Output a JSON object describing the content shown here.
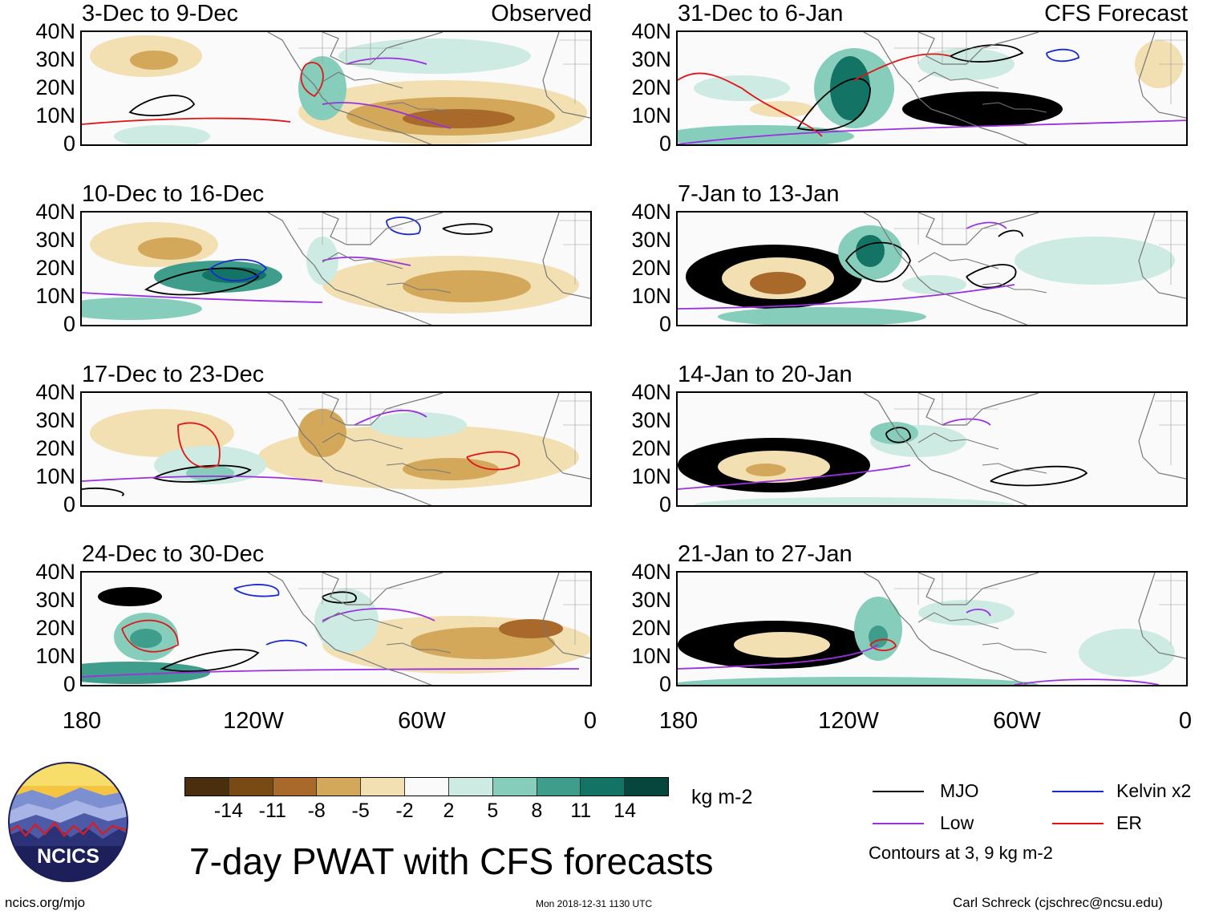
{
  "panels": [
    {
      "title": "3-Dec to 9-Dec",
      "tag": "Observed",
      "variant": 0
    },
    {
      "title": "31-Dec to 6-Jan",
      "tag": "CFS Forecast",
      "variant": 4
    },
    {
      "title": "10-Dec to 16-Dec",
      "tag": "",
      "variant": 1
    },
    {
      "title": "7-Jan to 13-Jan",
      "tag": "",
      "variant": 5
    },
    {
      "title": "17-Dec to 23-Dec",
      "tag": "",
      "variant": 2
    },
    {
      "title": "14-Jan to 20-Jan",
      "tag": "",
      "variant": 6
    },
    {
      "title": "24-Dec to 30-Dec",
      "tag": "",
      "variant": 3
    },
    {
      "title": "21-Jan to 27-Jan",
      "tag": "",
      "variant": 7
    }
  ],
  "lat_labels": [
    "40N",
    "30N",
    "20N",
    "10N",
    "0"
  ],
  "lon_labels": [
    "180",
    "120W",
    "60W",
    "0"
  ],
  "colorbar": {
    "labels": [
      "-14",
      "-11",
      "-8",
      "-5",
      "-2",
      "2",
      "5",
      "8",
      "11",
      "14"
    ],
    "colors": [
      "#4b2e0e",
      "#7a4a14",
      "#a8692a",
      "#d4a85a",
      "#f2dfb2",
      "#fafafa",
      "#cdebe2",
      "#86cdbb",
      "#3f9e8b",
      "#137364",
      "#06463c"
    ],
    "units": "kg m-2"
  },
  "title": "7-day PWAT with CFS forecasts",
  "legend": {
    "items": [
      {
        "label": "MJO",
        "color": "#000000"
      },
      {
        "label": "Kelvin x2",
        "color": "#1a2ad0"
      },
      {
        "label": "Low",
        "color": "#9b30e0"
      },
      {
        "label": "ER",
        "color": "#e01515"
      }
    ],
    "note": "Contours at 3, 9 kg m-2"
  },
  "logo": {
    "text": "NCICS"
  },
  "footer": {
    "url": "ncics.org/mjo",
    "timestamp": "Mon 2018-12-31 1130 UTC",
    "credit": "Carl Schreck (cjschrec@ncsu.edu)"
  }
}
